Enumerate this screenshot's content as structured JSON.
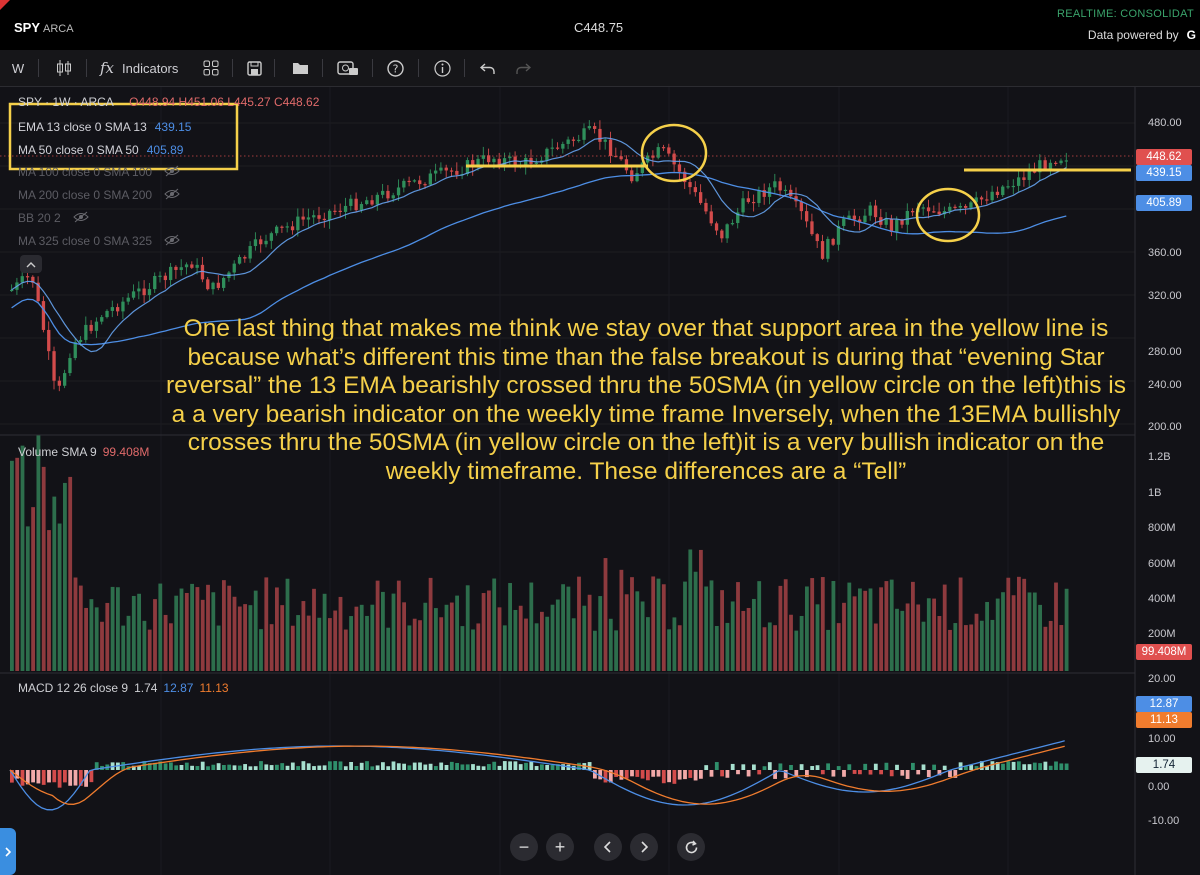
{
  "header": {
    "symbol": "SPY",
    "exchange": "ARCA",
    "last_price": "C448.75",
    "realtime": "REALTIME: CONSOLIDAT",
    "powered_by": "Data powered by",
    "powered_brand": "G"
  },
  "toolbar": {
    "interval": "W",
    "indicators_label": "Indicators"
  },
  "legend": {
    "title": "SPY · 1W · ARCA",
    "open": "O448.94",
    "high": "H451.06",
    "low": "L445.27",
    "close": "C448.62"
  },
  "indicators": [
    {
      "label": "EMA 13 close 0 SMA 13",
      "value": "439.15"
    },
    {
      "label": "MA 50 close 0 SMA 50",
      "value": "405.89"
    },
    {
      "label": "MA 100 close 0 SMA 100"
    },
    {
      "label": "MA 200 close 0 SMA 200"
    },
    {
      "label": "BB 20 2"
    },
    {
      "label": "MA 325 close 0 SMA 325"
    }
  ],
  "price_axis": [
    "480.00",
    "440.00",
    "400.00",
    "360.00",
    "320.00",
    "280.00",
    "240.00",
    "200.00"
  ],
  "price_tags": {
    "last": "448.62",
    "ema": "439.15",
    "sma": "405.89"
  },
  "volume": {
    "label": "Volume SMA 9",
    "value": "99.408M",
    "axis": [
      "1.2B",
      "1B",
      "800M",
      "600M",
      "400M",
      "200M"
    ],
    "tag": "99.408M"
  },
  "macd": {
    "label": "MACD 12 26 close 9",
    "hist": "1.74",
    "macd": "12.87",
    "signal": "11.13",
    "axis": [
      "20.00",
      "10.00",
      "0.00",
      "-10.00"
    ],
    "tags": {
      "macd": "12.87",
      "signal": "11.13",
      "hist": "1.74"
    }
  },
  "annotation": "One last thing that makes me think we stay over that support area in the yellow line is because what’s different this time than the false breakout is during that “evening Star reversal” the 13 EMA bearishly crossed thru the 50SMA (in yellow circle on the left)this is a a very bearish indicator on the weekly time frame Inversely, when the 13EMA bullishly crosses thru the 50SMA (in yellow circle on the left)it is a very bullish indicator on the weekly timeframe. These differences are a “Tell”",
  "colors": {
    "up": "#2f8f5b",
    "down": "#d34b4b",
    "ema": "#4d8ee5",
    "signal": "#f07c2e",
    "annotation": "#f5d04a"
  }
}
